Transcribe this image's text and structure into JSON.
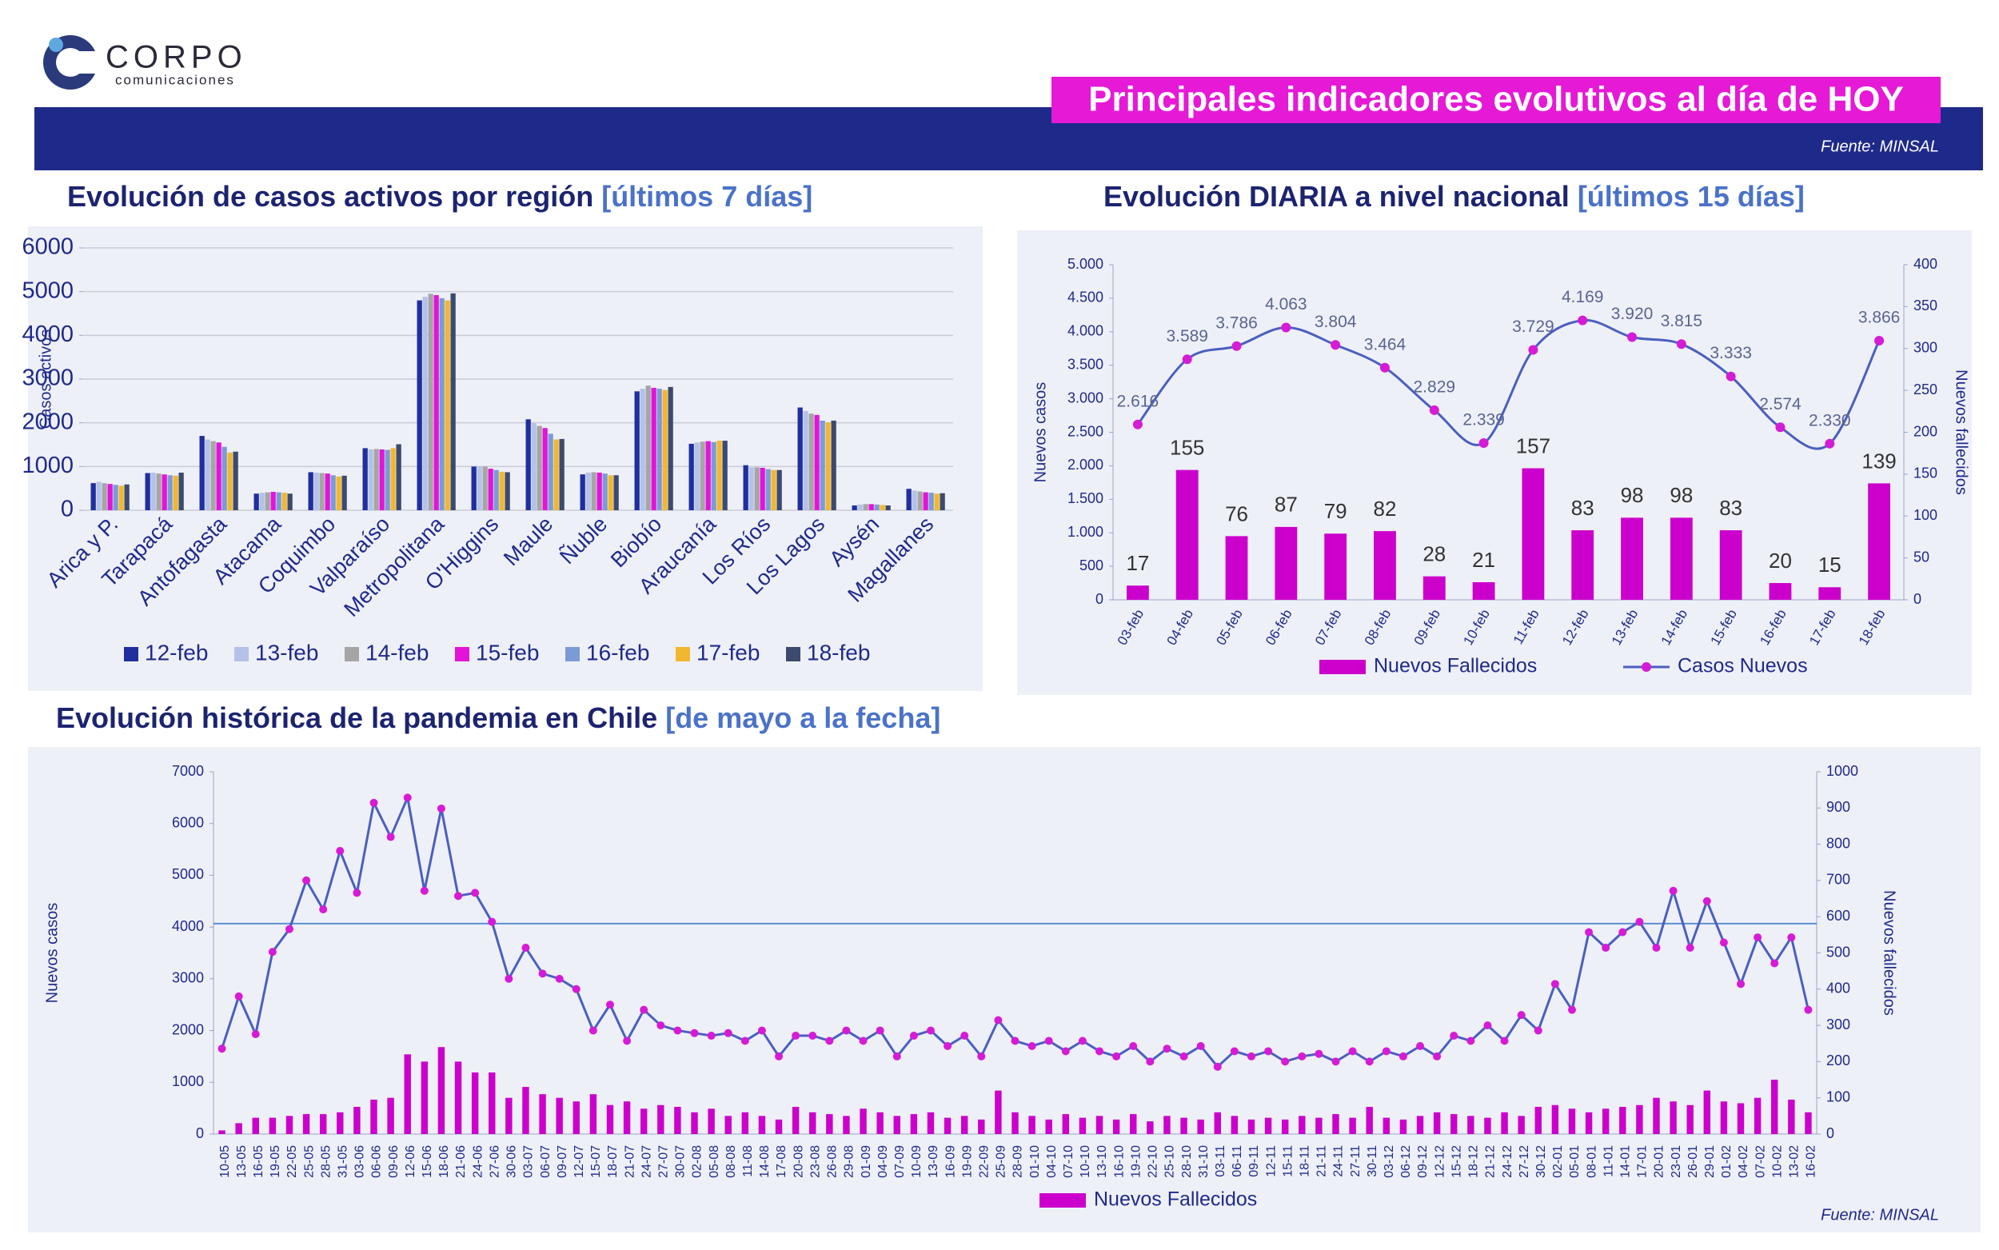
{
  "header": {
    "logo": "CORPO",
    "logo_sub": "comunicaciones",
    "title": "Principales indicadores evolutivos al día de HOY",
    "source": "Fuente: MINSAL"
  },
  "chart_data": [
    {
      "type": "bar",
      "title": "Evolución de casos activos por región",
      "title_period": "[últimos 7 días]",
      "y_label": "Casos activos",
      "categories": [
        "Arica y P.",
        "Tarapacá",
        "Antofagasta",
        "Atacama",
        "Coquimbo",
        "Valparaíso",
        "Metropolitana",
        "O'Higgins",
        "Maule",
        "Ñuble",
        "Biobío",
        "Araucanía",
        "Los Ríos",
        "Los Lagos",
        "Aysén",
        "Magallanes"
      ],
      "ylim": [
        0,
        6000
      ],
      "yticks": [
        0,
        1000,
        2000,
        3000,
        4000,
        5000,
        6000
      ],
      "grid": true,
      "series": [
        {
          "name": "12-feb",
          "color": "#1f2f9e",
          "values": [
            620,
            850,
            1700,
            380,
            870,
            1420,
            4800,
            1000,
            2080,
            820,
            2720,
            1520,
            1030,
            2350,
            110,
            490
          ]
        },
        {
          "name": "13-feb",
          "color": "#b4c1e8",
          "values": [
            650,
            860,
            1620,
            400,
            860,
            1390,
            4880,
            1010,
            1990,
            860,
            2780,
            1550,
            980,
            2270,
            130,
            450
          ]
        },
        {
          "name": "14-feb",
          "color": "#a5a5a5",
          "values": [
            620,
            840,
            1580,
            410,
            850,
            1400,
            4950,
            1000,
            1930,
            870,
            2850,
            1570,
            980,
            2210,
            140,
            430
          ]
        },
        {
          "name": "15-feb",
          "color": "#e314d8",
          "values": [
            600,
            820,
            1550,
            420,
            840,
            1390,
            4920,
            950,
            1880,
            860,
            2800,
            1580,
            970,
            2180,
            140,
            410
          ]
        },
        {
          "name": "16-feb",
          "color": "#7a9bd6",
          "values": [
            580,
            800,
            1450,
            410,
            800,
            1380,
            4850,
            920,
            1750,
            840,
            2780,
            1560,
            940,
            2050,
            130,
            400
          ]
        },
        {
          "name": "17-feb",
          "color": "#f2b730",
          "values": [
            560,
            790,
            1320,
            400,
            770,
            1420,
            4800,
            880,
            1620,
            800,
            2750,
            1590,
            920,
            2010,
            120,
            380
          ]
        },
        {
          "name": "18-feb",
          "color": "#3c4a6e",
          "values": [
            590,
            860,
            1340,
            380,
            790,
            1510,
            4960,
            870,
            1630,
            800,
            2820,
            1590,
            920,
            2050,
            110,
            390
          ]
        }
      ]
    },
    {
      "type": "combo",
      "title": "Evolución DIARIA a nivel nacional",
      "title_period": "[últimos 15 días]",
      "y_label": "Nuevos casos",
      "y2_label": "Nuevos fallecidos",
      "categories": [
        "03-feb",
        "04-feb",
        "05-feb",
        "06-feb",
        "07-feb",
        "08-feb",
        "09-feb",
        "10-feb",
        "11-feb",
        "12-feb",
        "13-feb",
        "14-feb",
        "15-feb",
        "16-feb",
        "17-feb",
        "18-feb"
      ],
      "ylim": [
        0,
        5000
      ],
      "yticks": [
        0,
        500,
        {
          "value": 1000,
          "label": "1.000"
        },
        {
          "value": 1500,
          "label": "1.500"
        },
        {
          "value": 2000,
          "label": "2.000"
        },
        {
          "value": 2500,
          "label": "2.500"
        },
        {
          "value": 3000,
          "label": "3.000"
        },
        {
          "value": 3500,
          "label": "3.500"
        },
        {
          "value": 4000,
          "label": "4.000"
        },
        {
          "value": 4500,
          "label": "4.500"
        },
        {
          "value": 5000,
          "label": "5.000"
        }
      ],
      "y2lim": [
        0,
        400
      ],
      "y2ticks": [
        0,
        50,
        100,
        150,
        200,
        250,
        300,
        350,
        400
      ],
      "smooth": true,
      "data_labels": true,
      "series": [
        {
          "name": "Nuevos Fallecidos",
          "kind": "bar",
          "axis": "y2",
          "color": "#cc00cc",
          "values": [
            17,
            155,
            76,
            87,
            79,
            82,
            28,
            21,
            157,
            83,
            98,
            98,
            83,
            20,
            15,
            139
          ]
        },
        {
          "name": "Casos Nuevos",
          "kind": "line",
          "color": "#4a5fbf",
          "marker_color": "#d61bd6",
          "values": [
            2616,
            3589,
            3786,
            4063,
            3804,
            3464,
            2829,
            2339,
            3729,
            4169,
            3920,
            3815,
            3333,
            2574,
            2330,
            3866
          ],
          "value_labels": [
            "2.616",
            "3.589",
            "3.786",
            "4.063",
            "3.804",
            "3.464",
            "2.829",
            "2.339",
            "3.729",
            "4.169",
            "3.920",
            "3.815",
            "3.333",
            "2.574",
            "2.330",
            "3.866"
          ]
        }
      ]
    },
    {
      "type": "combo",
      "title": "Evolución histórica de la pandemia en Chile",
      "title_period": "[de mayo a la fecha]",
      "y_label": "Nuevos casos",
      "y2_label": "Nuevos fallecidos",
      "categories": [
        "10-05",
        "13-05",
        "16-05",
        "19-05",
        "22-05",
        "25-05",
        "28-05",
        "31-05",
        "03-06",
        "06-06",
        "09-06",
        "12-06",
        "15-06",
        "18-06",
        "21-06",
        "24-06",
        "27-06",
        "30-06",
        "03-07",
        "06-07",
        "09-07",
        "12-07",
        "15-07",
        "18-07",
        "21-07",
        "24-07",
        "27-07",
        "30-07",
        "02-08",
        "05-08",
        "08-08",
        "11-08",
        "14-08",
        "17-08",
        "20-08",
        "23-08",
        "26-08",
        "29-08",
        "01-09",
        "04-09",
        "07-09",
        "10-09",
        "13-09",
        "16-09",
        "19-09",
        "22-09",
        "25-09",
        "28-09",
        "01-10",
        "04-10",
        "07-10",
        "10-10",
        "13-10",
        "16-10",
        "19-10",
        "22-10",
        "25-10",
        "28-10",
        "31-10",
        "03-11",
        "06-11",
        "09-11",
        "12-11",
        "15-11",
        "18-11",
        "21-11",
        "24-11",
        "27-11",
        "30-11",
        "03-12",
        "06-12",
        "09-12",
        "12-12",
        "15-12",
        "18-12",
        "21-12",
        "24-12",
        "27-12",
        "30-12",
        "02-01",
        "05-01",
        "08-01",
        "11-01",
        "14-01",
        "17-01",
        "20-01",
        "23-01",
        "26-01",
        "29-01",
        "01-02",
        "04-02",
        "07-02",
        "10-02",
        "13-02",
        "16-02"
      ],
      "ylim": [
        0,
        7000
      ],
      "yticks": [
        0,
        1000,
        2000,
        3000,
        4000,
        5000,
        6000,
        7000
      ],
      "y2lim": [
        0,
        1000
      ],
      "y2ticks": [
        0,
        100,
        200,
        300,
        400,
        500,
        600,
        700,
        800,
        900,
        1000
      ],
      "reference_line": 4066,
      "reference_color": "#5b8fd0",
      "smooth": false,
      "source": "Fuente: MINSAL",
      "series": [
        {
          "name": "Nuevos Fallecidos",
          "kind": "bar",
          "axis": "y2",
          "color": "#cc00cc",
          "values": [
            10,
            30,
            45,
            45,
            50,
            55,
            55,
            60,
            75,
            95,
            100,
            220,
            200,
            240,
            200,
            170,
            170,
            100,
            130,
            110,
            100,
            90,
            110,
            80,
            90,
            70,
            80,
            75,
            60,
            70,
            50,
            60,
            50,
            40,
            75,
            60,
            55,
            50,
            70,
            60,
            50,
            55,
            60,
            45,
            50,
            40,
            120,
            60,
            50,
            40,
            55,
            45,
            50,
            40,
            55,
            35,
            50,
            45,
            40,
            60,
            50,
            40,
            45,
            40,
            50,
            45,
            55,
            45,
            75,
            45,
            40,
            50,
            60,
            55,
            50,
            45,
            60,
            50,
            75,
            80,
            70,
            60,
            70,
            75,
            80,
            100,
            90,
            80,
            120,
            90,
            85,
            100,
            150,
            95,
            60
          ]
        },
        {
          "kind": "line",
          "color": "#4a5fbf",
          "marker_color": "#d61bd6",
          "values": [
            1650,
            2660,
            1930,
            3520,
            3960,
            4900,
            4340,
            5470,
            4660,
            6400,
            5740,
            6500,
            4700,
            6290,
            4600,
            4660,
            4100,
            3000,
            3600,
            3100,
            3000,
            2800,
            2000,
            2500,
            1800,
            2400,
            2100,
            2000,
            1950,
            1900,
            1950,
            1800,
            2000,
            1500,
            1900,
            1900,
            1800,
            2000,
            1800,
            2000,
            1500,
            1900,
            2000,
            1700,
            1900,
            1500,
            2200,
            1800,
            1700,
            1800,
            1600,
            1800,
            1600,
            1500,
            1700,
            1400,
            1650,
            1500,
            1700,
            1300,
            1600,
            1500,
            1600,
            1400,
            1500,
            1550,
            1400,
            1600,
            1400,
            1600,
            1500,
            1700,
            1500,
            1900,
            1800,
            2100,
            1800,
            2300,
            2000,
            2900,
            2400,
            3900,
            3600,
            3900,
            4100,
            3600,
            4700,
            3600,
            4500,
            3700,
            2900,
            3800,
            3300,
            3800,
            2400
          ]
        }
      ]
    }
  ]
}
